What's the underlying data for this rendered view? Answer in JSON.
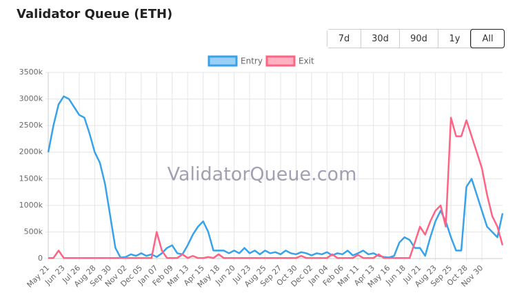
{
  "header": {
    "title": "Validator Queue (ETH)"
  },
  "range_buttons": [
    "7d",
    "30d",
    "90d",
    "1y",
    "All"
  ],
  "active_range": "All",
  "chart_data": {
    "type": "line",
    "watermark": "ValidatorQueue.com",
    "categories": [
      "May 21",
      null,
      null,
      "Jun 23",
      null,
      null,
      "Jul 26",
      null,
      null,
      "Aug 28",
      null,
      null,
      "Sep 30",
      null,
      null,
      "Nov 02",
      null,
      null,
      "Dec 05",
      null,
      null,
      "Jan 07",
      null,
      null,
      "Feb 09",
      null,
      null,
      "Mar 13",
      null,
      null,
      "Apr 15",
      null,
      null,
      "May 18",
      null,
      null,
      "Jun 20",
      null,
      null,
      "Jul 23",
      null,
      null,
      "Aug 25",
      null,
      null,
      "Sep 27",
      null,
      null,
      "Oct 30",
      null,
      null,
      "Dec 02",
      null,
      null,
      "Jan 04",
      null,
      null,
      "Feb 06",
      null,
      null,
      "Mar 11",
      null,
      null,
      "Apr 13",
      null,
      null,
      "May 16",
      null,
      null,
      "Jun 18",
      null,
      null,
      "Jul 21",
      null,
      null,
      "Aug 23",
      null,
      null,
      "Sep 25",
      null,
      null,
      "Oct 28",
      null,
      null,
      "Nov 30",
      null,
      null,
      null,
      null
    ],
    "series": [
      {
        "name": "Entry",
        "color": "#36a2eb",
        "fill": "#9ad0f5",
        "values": [
          2000000,
          2500000,
          2900000,
          3050000,
          3000000,
          2850000,
          2700000,
          2650000,
          2350000,
          2000000,
          1800000,
          1400000,
          800000,
          200000,
          20000,
          30000,
          80000,
          50000,
          100000,
          50000,
          80000,
          30000,
          100000,
          200000,
          250000,
          100000,
          80000,
          250000,
          450000,
          600000,
          700000,
          500000,
          150000,
          150000,
          150000,
          100000,
          150000,
          100000,
          200000,
          100000,
          150000,
          80000,
          150000,
          100000,
          120000,
          80000,
          150000,
          100000,
          80000,
          120000,
          100000,
          60000,
          100000,
          80000,
          120000,
          60000,
          100000,
          80000,
          150000,
          60000,
          100000,
          150000,
          80000,
          100000,
          50000,
          30000,
          20000,
          50000,
          300000,
          400000,
          350000,
          200000,
          200000,
          50000,
          400000,
          700000,
          900000,
          700000,
          400000,
          150000,
          150000,
          1350000,
          1500000,
          1200000,
          900000,
          600000,
          500000,
          400000,
          850000
        ]
      },
      {
        "name": "Exit",
        "color": "#ff6384",
        "fill": "#ffb1c1",
        "values": [
          10000,
          10000,
          150000,
          10000,
          10000,
          10000,
          10000,
          10000,
          10000,
          10000,
          10000,
          10000,
          10000,
          10000,
          10000,
          10000,
          10000,
          10000,
          10000,
          10000,
          10000,
          500000,
          150000,
          10000,
          10000,
          10000,
          80000,
          10000,
          50000,
          10000,
          10000,
          30000,
          10000,
          80000,
          10000,
          10000,
          10000,
          10000,
          10000,
          10000,
          10000,
          10000,
          10000,
          10000,
          10000,
          10000,
          10000,
          10000,
          10000,
          50000,
          10000,
          10000,
          10000,
          10000,
          10000,
          80000,
          10000,
          10000,
          10000,
          10000,
          70000,
          10000,
          10000,
          10000,
          80000,
          10000,
          10000,
          10000,
          10000,
          10000,
          10000,
          300000,
          600000,
          450000,
          700000,
          900000,
          1000000,
          600000,
          2650000,
          2300000,
          2300000,
          2600000,
          2300000,
          2000000,
          1700000,
          1200000,
          800000,
          600000,
          250000
        ]
      }
    ],
    "ylim": [
      0,
      3500000
    ],
    "yticks": [
      0,
      {
        "value": 500000,
        "label": "500k"
      },
      {
        "value": 1000000,
        "label": "1000k"
      },
      {
        "value": 1500000,
        "label": "1500k"
      },
      {
        "value": 2000000,
        "label": "2000k"
      },
      {
        "value": 2500000,
        "label": "2500k"
      },
      {
        "value": 3000000,
        "label": "3000k"
      },
      {
        "value": 3500000,
        "label": "3500k"
      }
    ],
    "grid": true,
    "legend": "top"
  }
}
